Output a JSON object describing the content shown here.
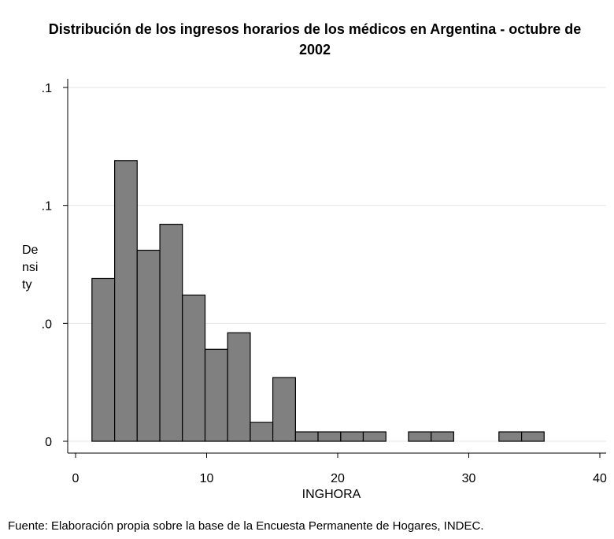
{
  "chart_data": {
    "type": "histogram",
    "title": "Distribución de los ingresos horarios de los médicos en Argentina - octubre de 2002",
    "x_label": "INGHORA",
    "y_label_lines": [
      "De",
      "nsi",
      "ty"
    ],
    "footnote": "Fuente: Elaboración propia sobre la base de la Encuesta Permanente de Hogares, INDEC.",
    "bins": [
      1.25,
      2.98,
      4.7,
      6.43,
      8.15,
      9.88,
      11.6,
      13.33,
      15.05,
      16.78,
      18.5,
      20.23,
      21.95,
      23.68,
      25.4,
      27.13,
      28.85,
      30.58,
      32.3,
      34.03,
      35.75
    ],
    "values": [
      0.069,
      0.119,
      0.081,
      0.092,
      0.062,
      0.039,
      0.046,
      0.008,
      0.027,
      0.004,
      0.004,
      0.004,
      0.004,
      0,
      0.004,
      0.004,
      0,
      0,
      0.004,
      0.004
    ],
    "color": "#808080",
    "xlim": [
      0,
      40
    ],
    "xticks": [
      0,
      10,
      20,
      30,
      40
    ],
    "ylim": [
      0,
      0.15
    ],
    "yticks": [
      {
        "value": 0,
        "label": "0"
      },
      {
        "value": 0.05,
        "label": ".0"
      },
      {
        "value": 0.1,
        "label": ".1"
      },
      {
        "value": 0.15,
        "label": ".1"
      }
    ],
    "grid": true
  }
}
